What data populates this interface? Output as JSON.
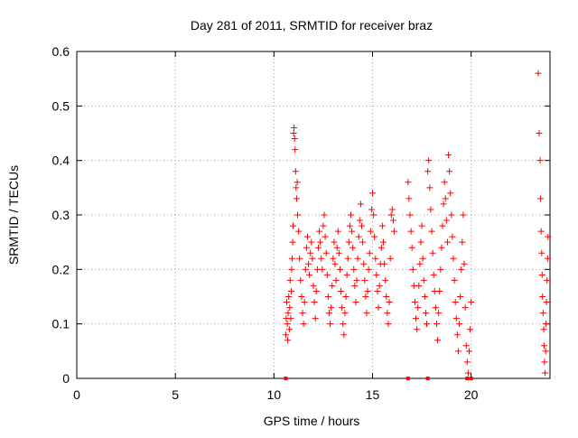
{
  "chart_data": {
    "type": "scatter",
    "title": "Day 281 of 2011, SRMTID for receiver braz",
    "xlabel": "GPS time / hours",
    "ylabel": "SRMTID / TECUs",
    "xlim": [
      0,
      24
    ],
    "ylim": [
      0,
      0.6
    ],
    "x_ticks": [
      0,
      5,
      10,
      15,
      20
    ],
    "x_tick_labels": [
      "0",
      "5",
      "10",
      "15",
      "20"
    ],
    "y_ticks": [
      0,
      0.1,
      0.2,
      0.3,
      0.4,
      0.5,
      0.6
    ],
    "y_tick_labels": [
      "0",
      "0.1",
      "0.2",
      "0.3",
      "0.4",
      "0.5",
      "0.6"
    ],
    "grid": true,
    "legend": "none",
    "marker": "plus",
    "series_color": "#ff0000",
    "series": [
      {
        "points": [
          [
            10.6,
            0.08
          ],
          [
            10.62,
            0.11
          ],
          [
            10.65,
            0.14
          ],
          [
            10.68,
            0.1
          ],
          [
            10.7,
            0.07
          ],
          [
            10.72,
            0.12
          ],
          [
            10.75,
            0.15
          ],
          [
            10.78,
            0.09
          ],
          [
            10.8,
            0.13
          ],
          [
            10.82,
            0.18
          ],
          [
            10.85,
            0.11
          ],
          [
            10.88,
            0.16
          ],
          [
            10.9,
            0.2
          ],
          [
            10.92,
            0.22
          ],
          [
            10.95,
            0.25
          ],
          [
            10.97,
            0.28
          ],
          [
            11.0,
            0.45
          ],
          [
            11.02,
            0.46
          ],
          [
            11.05,
            0.44
          ],
          [
            11.07,
            0.42
          ],
          [
            11.1,
            0.38
          ],
          [
            11.12,
            0.35
          ],
          [
            11.15,
            0.33
          ],
          [
            11.18,
            0.36
          ],
          [
            11.2,
            0.3
          ],
          [
            11.25,
            0.27
          ],
          [
            11.3,
            0.22
          ],
          [
            11.35,
            0.18
          ],
          [
            11.4,
            0.15
          ],
          [
            11.45,
            0.12
          ],
          [
            11.5,
            0.1
          ],
          [
            11.55,
            0.14
          ],
          [
            11.6,
            0.2
          ],
          [
            11.65,
            0.24
          ],
          [
            11.7,
            0.26
          ],
          [
            11.75,
            0.21
          ],
          [
            11.8,
            0.19
          ],
          [
            11.85,
            0.23
          ],
          [
            11.9,
            0.25
          ],
          [
            11.95,
            0.22
          ],
          [
            12.0,
            0.17
          ],
          [
            12.05,
            0.14
          ],
          [
            12.1,
            0.11
          ],
          [
            12.15,
            0.16
          ],
          [
            12.2,
            0.2
          ],
          [
            12.25,
            0.24
          ],
          [
            12.3,
            0.27
          ],
          [
            12.35,
            0.25
          ],
          [
            12.4,
            0.22
          ],
          [
            12.45,
            0.2
          ],
          [
            12.5,
            0.28
          ],
          [
            12.55,
            0.3
          ],
          [
            12.6,
            0.26
          ],
          [
            12.65,
            0.23
          ],
          [
            12.7,
            0.19
          ],
          [
            12.75,
            0.15
          ],
          [
            12.8,
            0.12
          ],
          [
            12.85,
            0.1
          ],
          [
            12.9,
            0.13
          ],
          [
            12.95,
            0.17
          ],
          [
            13.0,
            0.22
          ],
          [
            13.05,
            0.25
          ],
          [
            13.1,
            0.21
          ],
          [
            13.15,
            0.18
          ],
          [
            13.2,
            0.24
          ],
          [
            13.25,
            0.27
          ],
          [
            13.3,
            0.23
          ],
          [
            13.35,
            0.2
          ],
          [
            13.4,
            0.16
          ],
          [
            13.45,
            0.13
          ],
          [
            13.5,
            0.1
          ],
          [
            13.55,
            0.08
          ],
          [
            13.6,
            0.12
          ],
          [
            13.65,
            0.15
          ],
          [
            13.7,
            0.19
          ],
          [
            13.75,
            0.22
          ],
          [
            13.8,
            0.25
          ],
          [
            13.85,
            0.28
          ],
          [
            13.9,
            0.3
          ],
          [
            13.95,
            0.27
          ],
          [
            14.0,
            0.24
          ],
          [
            14.05,
            0.2
          ],
          [
            14.1,
            0.17
          ],
          [
            14.15,
            0.14
          ],
          [
            14.2,
            0.18
          ],
          [
            14.25,
            0.22
          ],
          [
            14.3,
            0.26
          ],
          [
            14.35,
            0.29
          ],
          [
            14.4,
            0.32
          ],
          [
            14.45,
            0.28
          ],
          [
            14.5,
            0.25
          ],
          [
            14.55,
            0.21
          ],
          [
            14.6,
            0.18
          ],
          [
            14.65,
            0.15
          ],
          [
            14.7,
            0.12
          ],
          [
            14.75,
            0.16
          ],
          [
            14.8,
            0.2
          ],
          [
            14.85,
            0.23
          ],
          [
            14.9,
            0.27
          ],
          [
            14.95,
            0.31
          ],
          [
            15.0,
            0.34
          ],
          [
            15.05,
            0.3
          ],
          [
            15.1,
            0.26
          ],
          [
            15.15,
            0.22
          ],
          [
            15.2,
            0.19
          ],
          [
            15.25,
            0.16
          ],
          [
            15.3,
            0.13
          ],
          [
            15.35,
            0.17
          ],
          [
            15.4,
            0.21
          ],
          [
            15.45,
            0.24
          ],
          [
            15.5,
            0.28
          ],
          [
            15.55,
            0.25
          ],
          [
            15.6,
            0.21
          ],
          [
            15.65,
            0.18
          ],
          [
            15.7,
            0.15
          ],
          [
            15.75,
            0.12
          ],
          [
            15.8,
            0.1
          ],
          [
            15.85,
            0.14
          ],
          [
            15.9,
            0.22
          ],
          [
            15.95,
            0.3
          ],
          [
            16.0,
            0.31
          ],
          [
            16.05,
            0.29
          ],
          [
            16.1,
            0.27
          ],
          [
            16.8,
            0.36
          ],
          [
            16.85,
            0.33
          ],
          [
            16.9,
            0.3
          ],
          [
            16.95,
            0.27
          ],
          [
            17.0,
            0.24
          ],
          [
            17.05,
            0.2
          ],
          [
            17.1,
            0.17
          ],
          [
            17.15,
            0.14
          ],
          [
            17.2,
            0.11
          ],
          [
            17.25,
            0.09
          ],
          [
            17.3,
            0.13
          ],
          [
            17.35,
            0.17
          ],
          [
            17.4,
            0.21
          ],
          [
            17.45,
            0.25
          ],
          [
            17.5,
            0.28
          ],
          [
            17.55,
            0.22
          ],
          [
            17.6,
            0.18
          ],
          [
            17.65,
            0.15
          ],
          [
            17.7,
            0.12
          ],
          [
            17.75,
            0.1
          ],
          [
            17.8,
            0.38
          ],
          [
            17.85,
            0.4
          ],
          [
            17.9,
            0.35
          ],
          [
            17.95,
            0.31
          ],
          [
            18.0,
            0.27
          ],
          [
            18.05,
            0.23
          ],
          [
            18.1,
            0.19
          ],
          [
            18.15,
            0.16
          ],
          [
            18.2,
            0.13
          ],
          [
            18.25,
            0.1
          ],
          [
            18.3,
            0.07
          ],
          [
            18.35,
            0.12
          ],
          [
            18.4,
            0.16
          ],
          [
            18.45,
            0.2
          ],
          [
            18.5,
            0.24
          ],
          [
            18.55,
            0.28
          ],
          [
            18.6,
            0.32
          ],
          [
            18.65,
            0.36
          ],
          [
            18.7,
            0.33
          ],
          [
            18.75,
            0.29
          ],
          [
            18.8,
            0.25
          ],
          [
            18.85,
            0.41
          ],
          [
            18.9,
            0.38
          ],
          [
            18.95,
            0.34
          ],
          [
            19.0,
            0.3
          ],
          [
            19.05,
            0.26
          ],
          [
            19.1,
            0.22
          ],
          [
            19.15,
            0.18
          ],
          [
            19.2,
            0.14
          ],
          [
            19.25,
            0.11
          ],
          [
            19.3,
            0.08
          ],
          [
            19.35,
            0.05
          ],
          [
            19.4,
            0.1
          ],
          [
            19.45,
            0.15
          ],
          [
            19.5,
            0.2
          ],
          [
            19.55,
            0.25
          ],
          [
            19.6,
            0.3
          ],
          [
            19.65,
            0.21
          ],
          [
            19.7,
            0.13
          ],
          [
            19.75,
            0.06
          ],
          [
            19.8,
            0.03
          ],
          [
            19.85,
            0.01
          ],
          [
            19.9,
            0.05
          ],
          [
            19.95,
            0.09
          ],
          [
            20.0,
            0.14
          ],
          [
            23.4,
            0.56
          ],
          [
            23.45,
            0.45
          ],
          [
            23.5,
            0.4
          ],
          [
            23.52,
            0.33
          ],
          [
            23.55,
            0.27
          ],
          [
            23.58,
            0.23
          ],
          [
            23.6,
            0.19
          ],
          [
            23.62,
            0.15
          ],
          [
            23.65,
            0.12
          ],
          [
            23.68,
            0.09
          ],
          [
            23.7,
            0.06
          ],
          [
            23.72,
            0.03
          ],
          [
            23.75,
            0.01
          ],
          [
            23.78,
            0.05
          ],
          [
            23.8,
            0.1
          ],
          [
            23.82,
            0.14
          ],
          [
            23.85,
            0.18
          ],
          [
            23.88,
            0.22
          ],
          [
            23.9,
            0.26
          ]
        ]
      }
    ],
    "zero_markers_x": [
      10.6,
      16.8,
      17.8,
      19.8,
      20.0
    ]
  }
}
